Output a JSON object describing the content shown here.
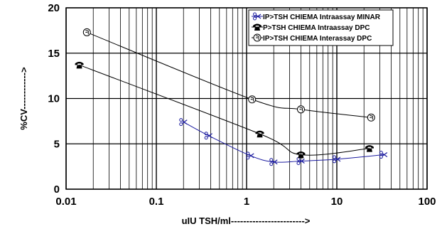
{
  "chart_data": {
    "type": "line",
    "xscale": "log",
    "xlim": [
      0.01,
      100
    ],
    "ylim": [
      0,
      20
    ],
    "xlabel": "uIU TSH/ml------------------------>",
    "ylabel": "%CV------------>",
    "grid": true,
    "legend_position": "top-right",
    "x_ticks": [
      {
        "value": 0.01,
        "label": "0.01"
      },
      {
        "value": 0.1,
        "label": "0.1"
      },
      {
        "value": 1,
        "label": "1"
      },
      {
        "value": 10,
        "label": "10"
      },
      {
        "value": 100,
        "label": "100"
      }
    ],
    "y_ticks": [
      {
        "value": 0,
        "label": "0"
      },
      {
        "value": 5,
        "label": "5"
      },
      {
        "value": 10,
        "label": "10"
      },
      {
        "value": 15,
        "label": "15"
      },
      {
        "value": 20,
        "label": "20"
      }
    ],
    "series": [
      {
        "name": "IP>TSH CHIEMA Intraassay MINAR",
        "color": "#1c1ca0",
        "marker": "scissors-icon",
        "points": [
          [
            0.2,
            7.4
          ],
          [
            0.38,
            5.9
          ],
          [
            1.1,
            3.7
          ],
          [
            2.0,
            3.0
          ],
          [
            4.0,
            3.1
          ],
          [
            10.0,
            3.3
          ],
          [
            33.0,
            3.8
          ]
        ]
      },
      {
        "name": "P>TSH CHIEMA Intraassay DPC",
        "color": "#000000",
        "marker": "telephone-icon",
        "points": [
          [
            0.014,
            13.7
          ],
          [
            1.4,
            6.1
          ],
          [
            4.0,
            3.8
          ],
          [
            23.0,
            4.5
          ]
        ]
      },
      {
        "name": "IP>TSH CHIEMA Interassay DPC",
        "color": "#000000",
        "marker": "hand-circle-icon",
        "points": [
          [
            0.017,
            17.3
          ],
          [
            1.15,
            9.9
          ],
          [
            4.0,
            8.8
          ],
          [
            24.0,
            7.9
          ]
        ]
      }
    ]
  }
}
